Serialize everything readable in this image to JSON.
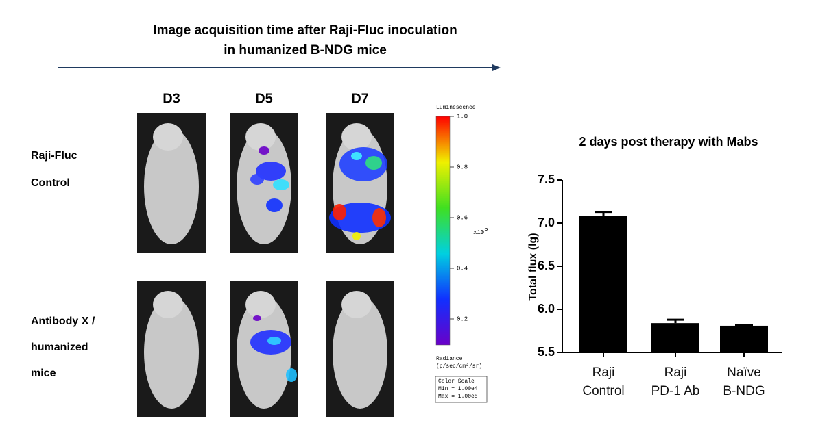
{
  "header": {
    "title_lines": [
      "Image acquisition time after Raji-Fluc inoculation",
      "in humanized B-NDG mice"
    ]
  },
  "columns": [
    "D3",
    "D5",
    "D7"
  ],
  "rows": [
    [
      "Raji-Fluc",
      "Control"
    ],
    [
      "Antibody X /",
      "humanized",
      "mice"
    ]
  ],
  "color_scale": {
    "title": "Luminescence",
    "unit": "x10",
    "unit_exp": "5",
    "lim": [
      0.1,
      {
        "value": 1,
        "label": "1.0"
      }
    ],
    "ticks": [
      0.2,
      0.4,
      0.6,
      0.8,
      {
        "value": 1,
        "label": "1.0"
      }
    ],
    "radiance_lines": [
      "Radiance",
      "(p/sec/cm²/sr)"
    ],
    "box_lines": [
      "Color Scale",
      "Min = 1.00e4",
      "Max = 1.00e5"
    ]
  },
  "chart_data": {
    "type": "bar",
    "title": "2 days post therapy with Mabs",
    "y_label": "Total flux (lg)",
    "categories": [
      "Raji\nControl",
      "Raji\nPD-1 Ab",
      "Naïve\nB-NDG"
    ],
    "values": [
      7.08,
      5.84,
      5.81
    ],
    "errors": [
      0.05,
      0.04,
      0.01
    ],
    "color": "#000000",
    "ylim": [
      5.5,
      7.5
    ],
    "yticks": [
      5.5,
      {
        "value": 6,
        "label": "6.0"
      },
      6.5,
      {
        "value": 7,
        "label": "7.0"
      },
      7.5
    ]
  }
}
